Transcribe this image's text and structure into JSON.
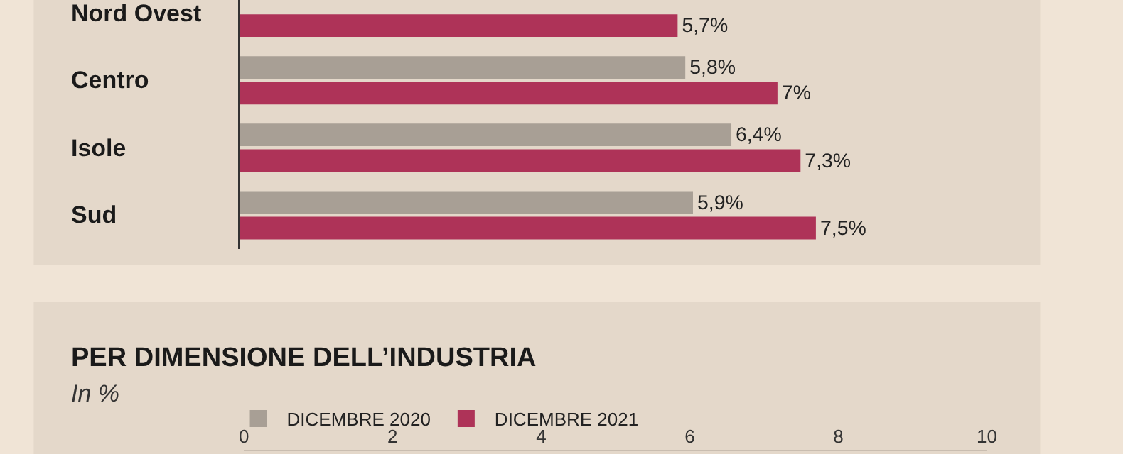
{
  "chart_data": [
    {
      "type": "bar",
      "orientation": "horizontal",
      "categories": [
        "Nord Ovest",
        "Centro",
        "Isole",
        "Sud"
      ],
      "series": [
        {
          "color": "#a89f95",
          "values": [
            null,
            5.8,
            6.4,
            5.9
          ],
          "value_labels": [
            null,
            "5,8%",
            "6,4%",
            "5,9%"
          ]
        },
        {
          "color": "#ae3358",
          "values": [
            5.7,
            7,
            7.3,
            7.5
          ],
          "value_labels": [
            "5,7%",
            "7%",
            "7,3%",
            "7,5%"
          ]
        }
      ]
    },
    {
      "type": "bar",
      "orientation": "horizontal",
      "title": "PER DIMENSIONE DELL’INDUSTRIA",
      "subtitle": "In %",
      "categories": [
        null
      ],
      "series": [
        {
          "name": "DICEMBRE 2020",
          "color": "#a89f95",
          "values": [
            null
          ]
        },
        {
          "name": "DICEMBRE 2021",
          "color": "#ae3358",
          "values": [
            null
          ]
        }
      ],
      "xlim": [
        0,
        10
      ],
      "xticks": [
        0,
        2,
        4,
        6,
        8,
        10
      ],
      "legend": "top"
    }
  ]
}
